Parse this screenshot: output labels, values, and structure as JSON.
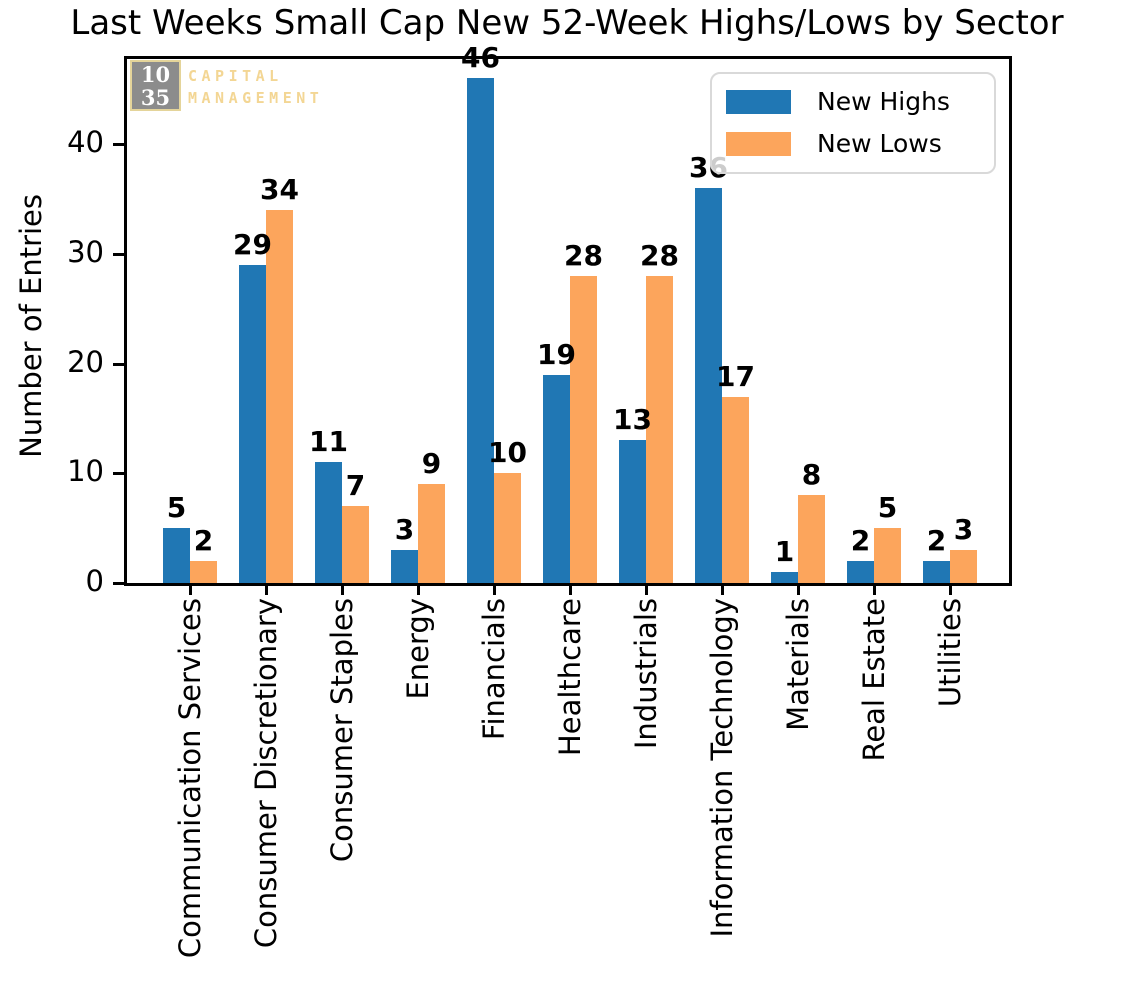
{
  "title": "Last Weeks Small Cap New 52-Week Highs/Lows by Sector",
  "logo": {
    "box_line1": "10",
    "box_line2": "35",
    "word1": "CAPITAL",
    "word2": "MANAGEMENT",
    "box_color": "#8c8c8c",
    "accent_color": "#f3d694"
  },
  "chart_data": {
    "type": "bar",
    "title": "Last Weeks Small Cap New 52-Week Highs/Lows by Sector",
    "xlabel": "",
    "ylabel": "Number of Entries",
    "categories": [
      "Communication Services",
      "Consumer Discretionary",
      "Consumer Staples",
      "Energy",
      "Financials",
      "Healthcare",
      "Industrials",
      "Information Technology",
      "Materials",
      "Real Estate",
      "Utilities"
    ],
    "series": [
      {
        "name": "New Highs",
        "color": "#2077b4",
        "values": [
          5,
          29,
          11,
          3,
          46,
          19,
          13,
          36,
          1,
          2,
          2
        ]
      },
      {
        "name": "New Lows",
        "color": "#fca55c",
        "values": [
          2,
          34,
          7,
          9,
          10,
          28,
          28,
          17,
          8,
          5,
          3
        ]
      }
    ],
    "ylim": [
      0,
      48
    ],
    "yticks": [
      0,
      10,
      20,
      30,
      40
    ],
    "bar_value_labels": true,
    "grid": false,
    "legend_position": "upper right",
    "x_tick_rotation": 90
  }
}
